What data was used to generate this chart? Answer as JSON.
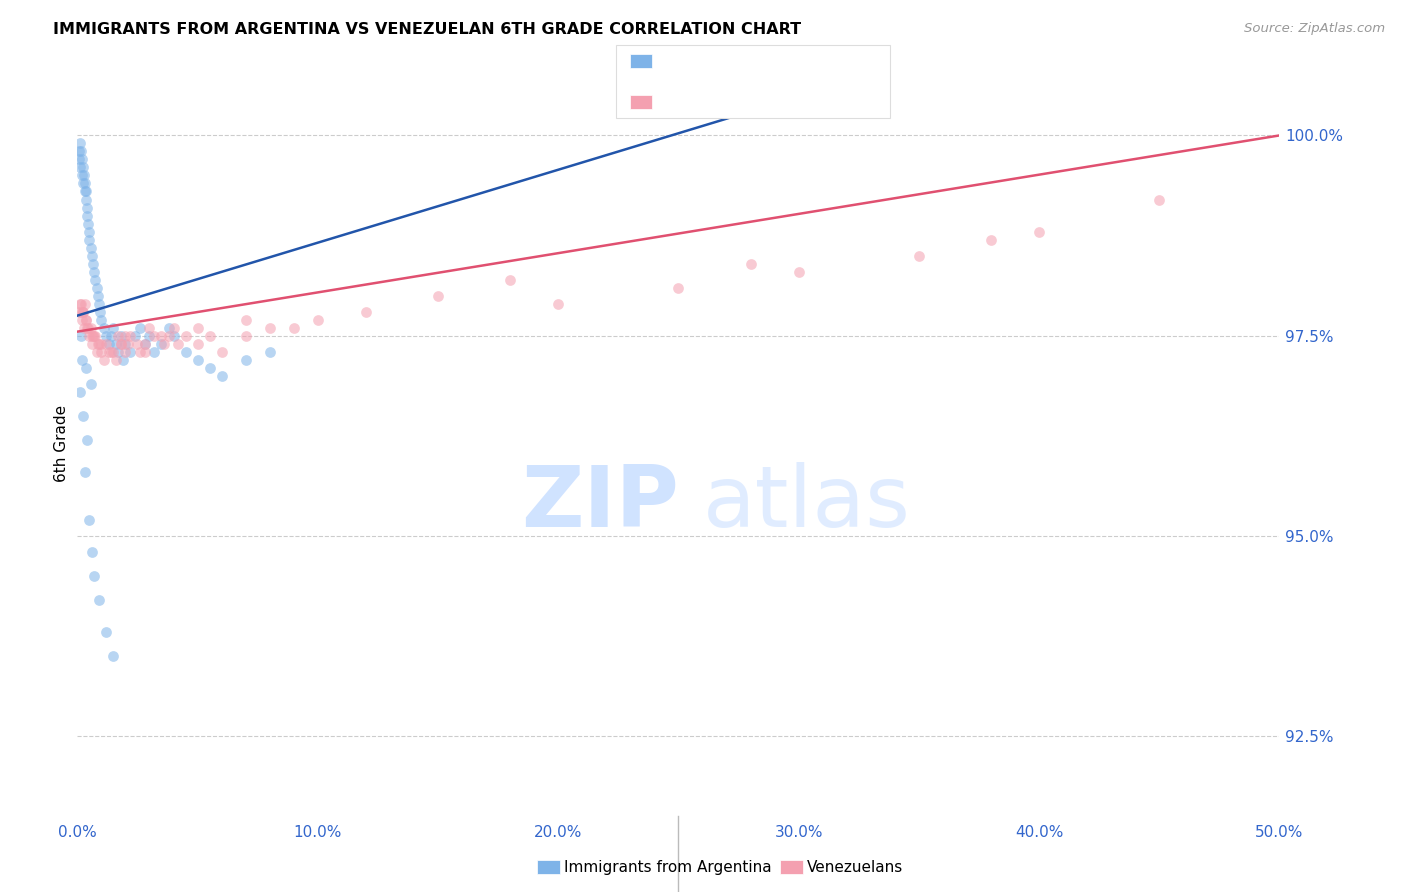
{
  "title": "IMMIGRANTS FROM ARGENTINA VS VENEZUELAN 6TH GRADE CORRELATION CHART",
  "source": "Source: ZipAtlas.com",
  "ylabel": "6th Grade",
  "right_yticks": [
    92.5,
    95.0,
    97.5,
    100.0
  ],
  "right_yticklabels": [
    "92.5%",
    "95.0%",
    "97.5%",
    "100.0%"
  ],
  "blue_color": "#7EB3E8",
  "pink_color": "#F4A0B0",
  "blue_line_color": "#2255AA",
  "pink_line_color": "#E05070",
  "xmin": 0.0,
  "xmax": 50.0,
  "ymin": 91.5,
  "ymax": 100.8,
  "blue_line_x0": 0.0,
  "blue_line_x1": 28.0,
  "blue_line_y0": 97.75,
  "blue_line_y1": 100.3,
  "pink_line_x0": 0.0,
  "pink_line_x1": 50.0,
  "pink_line_y0": 97.55,
  "pink_line_y1": 100.0,
  "argentina_x": [
    0.05,
    0.08,
    0.1,
    0.12,
    0.15,
    0.18,
    0.2,
    0.22,
    0.25,
    0.28,
    0.3,
    0.32,
    0.35,
    0.38,
    0.4,
    0.42,
    0.45,
    0.48,
    0.5,
    0.55,
    0.6,
    0.65,
    0.7,
    0.75,
    0.8,
    0.85,
    0.9,
    0.95,
    1.0,
    1.1,
    1.2,
    1.3,
    1.4,
    1.5,
    1.6,
    1.7,
    1.8,
    1.9,
    2.0,
    2.2,
    2.4,
    2.6,
    2.8,
    3.0,
    3.2,
    3.5,
    3.8,
    4.0,
    4.5,
    5.0,
    5.5,
    6.0,
    7.0,
    8.0,
    0.1,
    0.15,
    0.2,
    0.25,
    0.3,
    0.4,
    0.5,
    0.6,
    0.7,
    0.9,
    1.2,
    0.35,
    0.55,
    1.5
  ],
  "argentina_y": [
    99.8,
    99.7,
    99.9,
    99.6,
    99.8,
    99.5,
    99.7,
    99.6,
    99.4,
    99.5,
    99.3,
    99.4,
    99.2,
    99.3,
    99.1,
    99.0,
    98.9,
    98.8,
    98.7,
    98.6,
    98.5,
    98.4,
    98.3,
    98.2,
    98.1,
    98.0,
    97.9,
    97.8,
    97.7,
    97.6,
    97.5,
    97.4,
    97.5,
    97.6,
    97.4,
    97.3,
    97.5,
    97.2,
    97.4,
    97.3,
    97.5,
    97.6,
    97.4,
    97.5,
    97.3,
    97.4,
    97.6,
    97.5,
    97.3,
    97.2,
    97.1,
    97.0,
    97.2,
    97.3,
    96.8,
    97.5,
    97.2,
    96.5,
    95.8,
    96.2,
    95.2,
    94.8,
    94.5,
    94.2,
    93.8,
    97.1,
    96.9,
    93.5
  ],
  "venezuela_x": [
    0.08,
    0.12,
    0.18,
    0.22,
    0.28,
    0.35,
    0.42,
    0.5,
    0.6,
    0.7,
    0.8,
    0.9,
    1.0,
    1.1,
    1.2,
    1.4,
    1.6,
    1.8,
    2.0,
    2.2,
    2.5,
    2.8,
    3.2,
    3.6,
    4.0,
    4.5,
    5.0,
    6.0,
    7.0,
    8.0,
    10.0,
    12.0,
    15.0,
    20.0,
    25.0,
    30.0,
    35.0,
    40.0,
    45.0,
    0.15,
    0.25,
    0.38,
    0.55,
    0.75,
    1.0,
    1.3,
    1.7,
    2.1,
    2.6,
    3.0,
    3.5,
    4.2,
    5.5,
    9.0,
    0.3,
    0.45,
    0.65,
    0.85,
    1.5,
    2.0,
    2.8,
    3.8,
    5.0,
    7.0,
    18.0,
    28.0,
    38.0,
    0.2,
    0.6,
    1.8
  ],
  "venezuela_y": [
    97.8,
    97.9,
    97.7,
    97.8,
    97.6,
    97.7,
    97.6,
    97.5,
    97.4,
    97.5,
    97.3,
    97.4,
    97.3,
    97.2,
    97.4,
    97.3,
    97.2,
    97.4,
    97.3,
    97.5,
    97.4,
    97.3,
    97.5,
    97.4,
    97.6,
    97.5,
    97.4,
    97.3,
    97.5,
    97.6,
    97.7,
    97.8,
    98.0,
    97.9,
    98.1,
    98.3,
    98.5,
    98.8,
    99.2,
    97.9,
    97.8,
    97.7,
    97.6,
    97.5,
    97.4,
    97.3,
    97.5,
    97.4,
    97.3,
    97.6,
    97.5,
    97.4,
    97.5,
    97.6,
    97.9,
    97.6,
    97.5,
    97.4,
    97.3,
    97.5,
    97.4,
    97.5,
    97.6,
    97.7,
    98.2,
    98.4,
    98.7,
    97.8,
    97.5,
    97.4
  ]
}
